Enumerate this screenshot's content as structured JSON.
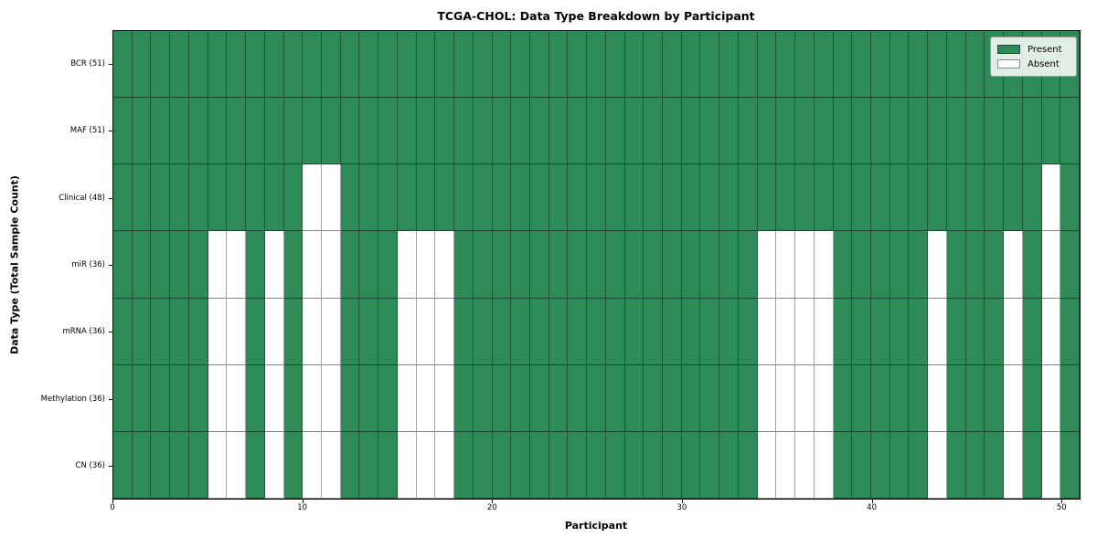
{
  "chart_data": {
    "type": "heatmap",
    "title": "TCGA-CHOL: Data Type Breakdown by Participant",
    "xlabel": "Participant",
    "ylabel": "Data Type (Total Sample Count)",
    "x_ticks": [
      0,
      10,
      20,
      30,
      40,
      50
    ],
    "n_participants": 51,
    "x_range": [
      0,
      51
    ],
    "grid": true,
    "legend_position": "upper right",
    "rows": [
      {
        "label": "BCR (51)",
        "total": 51,
        "absent_participants": []
      },
      {
        "label": "MAF (51)",
        "total": 51,
        "absent_participants": []
      },
      {
        "label": "Clinical (48)",
        "total": 48,
        "absent_participants": [
          10,
          11,
          49
        ]
      },
      {
        "label": "miR (36)",
        "total": 36,
        "absent_participants": [
          5,
          6,
          8,
          10,
          11,
          15,
          16,
          17,
          34,
          35,
          36,
          37,
          43,
          47,
          49
        ]
      },
      {
        "label": "mRNA (36)",
        "total": 36,
        "absent_participants": [
          5,
          6,
          8,
          10,
          11,
          15,
          16,
          17,
          34,
          35,
          36,
          37,
          43,
          47,
          49
        ]
      },
      {
        "label": "Methylation (36)",
        "total": 36,
        "absent_participants": [
          5,
          6,
          8,
          10,
          11,
          15,
          16,
          17,
          34,
          35,
          36,
          37,
          43,
          47,
          49
        ]
      },
      {
        "label": "CN (36)",
        "total": 36,
        "absent_participants": [
          5,
          6,
          8,
          10,
          11,
          15,
          16,
          17,
          34,
          35,
          36,
          37,
          43,
          47,
          49
        ]
      }
    ],
    "legend": [
      {
        "label": "Present",
        "color": "#2e8b57"
      },
      {
        "label": "Absent",
        "color": "#ffffff"
      }
    ],
    "colors": {
      "present": "#2e8b57",
      "absent": "#ffffff"
    }
  }
}
